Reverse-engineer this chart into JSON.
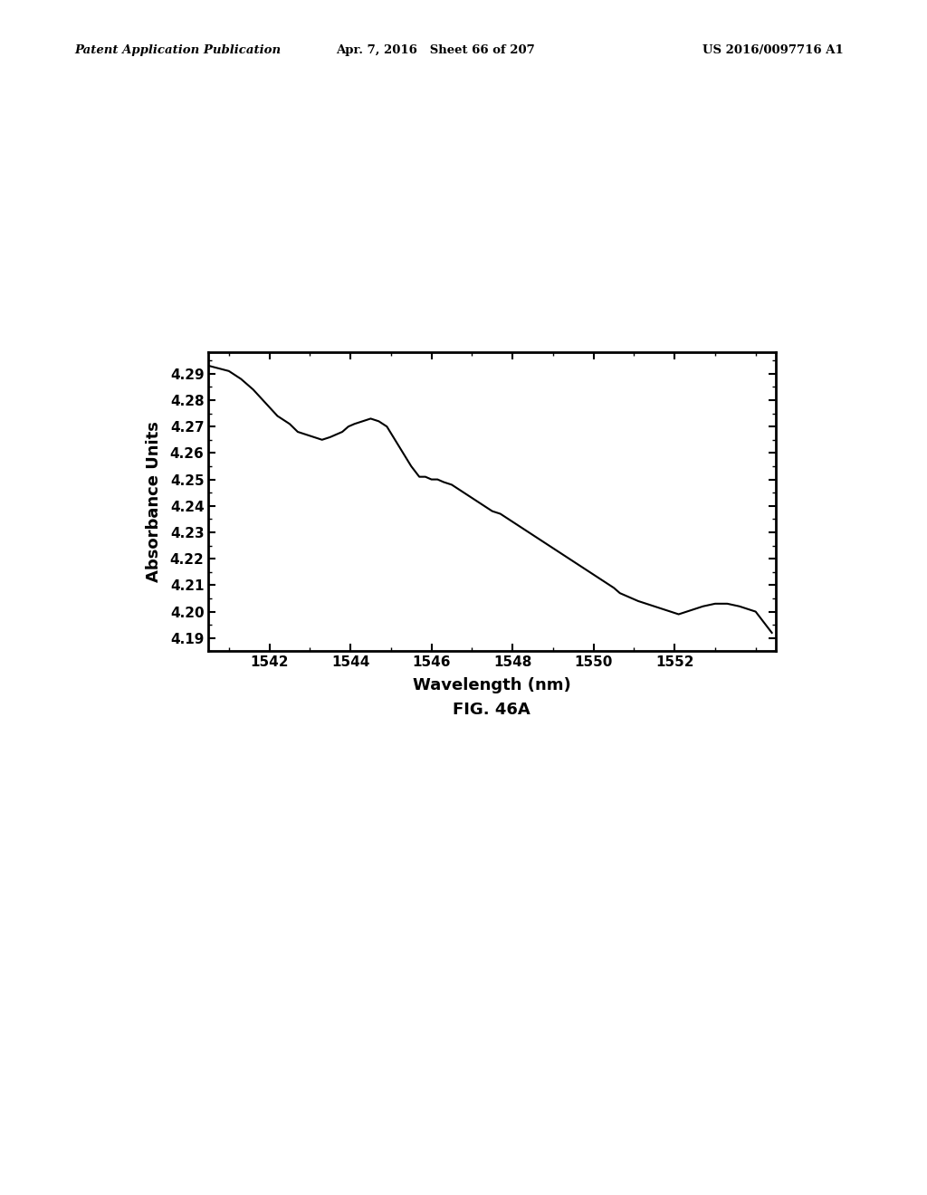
{
  "title": "FIG. 46A",
  "xlabel": "Wavelength (nm)",
  "ylabel": "Absorbance Units",
  "header_left": "Patent Application Publication",
  "header_center": "Apr. 7, 2016   Sheet 66 of 207",
  "header_right": "US 2016/0097716 A1",
  "xlim": [
    1540.5,
    1554.5
  ],
  "ylim": [
    4.185,
    4.298
  ],
  "xticks": [
    1542,
    1544,
    1546,
    1548,
    1550,
    1552
  ],
  "yticks": [
    4.19,
    4.2,
    4.21,
    4.22,
    4.23,
    4.24,
    4.25,
    4.26,
    4.27,
    4.28,
    4.29
  ],
  "line_color": "#000000",
  "background_color": "#ffffff",
  "x": [
    1540.5,
    1541.0,
    1541.3,
    1541.6,
    1541.9,
    1542.2,
    1542.5,
    1542.7,
    1542.9,
    1543.1,
    1543.3,
    1543.5,
    1543.65,
    1543.8,
    1543.95,
    1544.1,
    1544.3,
    1544.5,
    1544.7,
    1544.9,
    1545.1,
    1545.3,
    1545.5,
    1545.7,
    1545.85,
    1546.0,
    1546.15,
    1546.3,
    1546.5,
    1546.7,
    1546.9,
    1547.1,
    1547.3,
    1547.5,
    1547.7,
    1547.9,
    1548.1,
    1548.3,
    1548.5,
    1548.7,
    1548.9,
    1549.1,
    1549.3,
    1549.5,
    1549.7,
    1549.9,
    1550.1,
    1550.3,
    1550.5,
    1550.65,
    1550.8,
    1550.95,
    1551.1,
    1551.3,
    1551.5,
    1551.7,
    1551.9,
    1552.1,
    1552.3,
    1552.5,
    1552.7,
    1553.0,
    1553.3,
    1553.6,
    1554.0,
    1554.4
  ],
  "y": [
    4.293,
    4.291,
    4.288,
    4.284,
    4.279,
    4.274,
    4.271,
    4.268,
    4.267,
    4.266,
    4.265,
    4.266,
    4.267,
    4.268,
    4.27,
    4.271,
    4.272,
    4.273,
    4.272,
    4.27,
    4.265,
    4.26,
    4.255,
    4.251,
    4.251,
    4.25,
    4.25,
    4.249,
    4.248,
    4.246,
    4.244,
    4.242,
    4.24,
    4.238,
    4.237,
    4.235,
    4.233,
    4.231,
    4.229,
    4.227,
    4.225,
    4.223,
    4.221,
    4.219,
    4.217,
    4.215,
    4.213,
    4.211,
    4.209,
    4.207,
    4.206,
    4.205,
    4.204,
    4.203,
    4.202,
    4.201,
    4.2,
    4.199,
    4.2,
    4.201,
    4.202,
    4.203,
    4.203,
    4.202,
    4.2,
    4.192
  ]
}
